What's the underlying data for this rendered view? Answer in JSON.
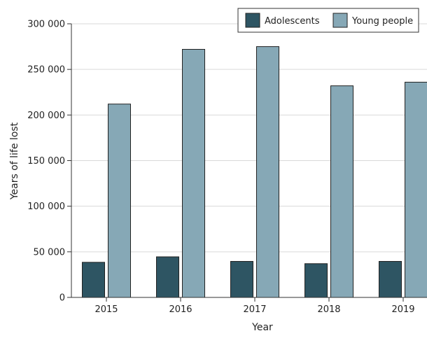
{
  "chart_data": {
    "type": "bar",
    "xlabel": "Year",
    "ylabel": "Years of life lost",
    "categories": [
      "2015",
      "2016",
      "2017",
      "2018",
      "2019"
    ],
    "series": [
      {
        "name": "Adolescents",
        "color": "#2e5563",
        "values": [
          38500,
          44500,
          39500,
          37000,
          39500
        ]
      },
      {
        "name": "Young people",
        "color": "#86a8b6",
        "values": [
          212000,
          272000,
          275000,
          232000,
          236000
        ]
      }
    ],
    "ylim": [
      0,
      300000
    ],
    "yticks": [
      0,
      50000,
      100000,
      150000,
      200000,
      250000,
      300000
    ],
    "ytick_labels": [
      "0",
      "50 000",
      "100 000",
      "150 000",
      "200 000",
      "250 000",
      "300 000"
    ],
    "grid": "horizontal",
    "legend_position": "top-right"
  }
}
